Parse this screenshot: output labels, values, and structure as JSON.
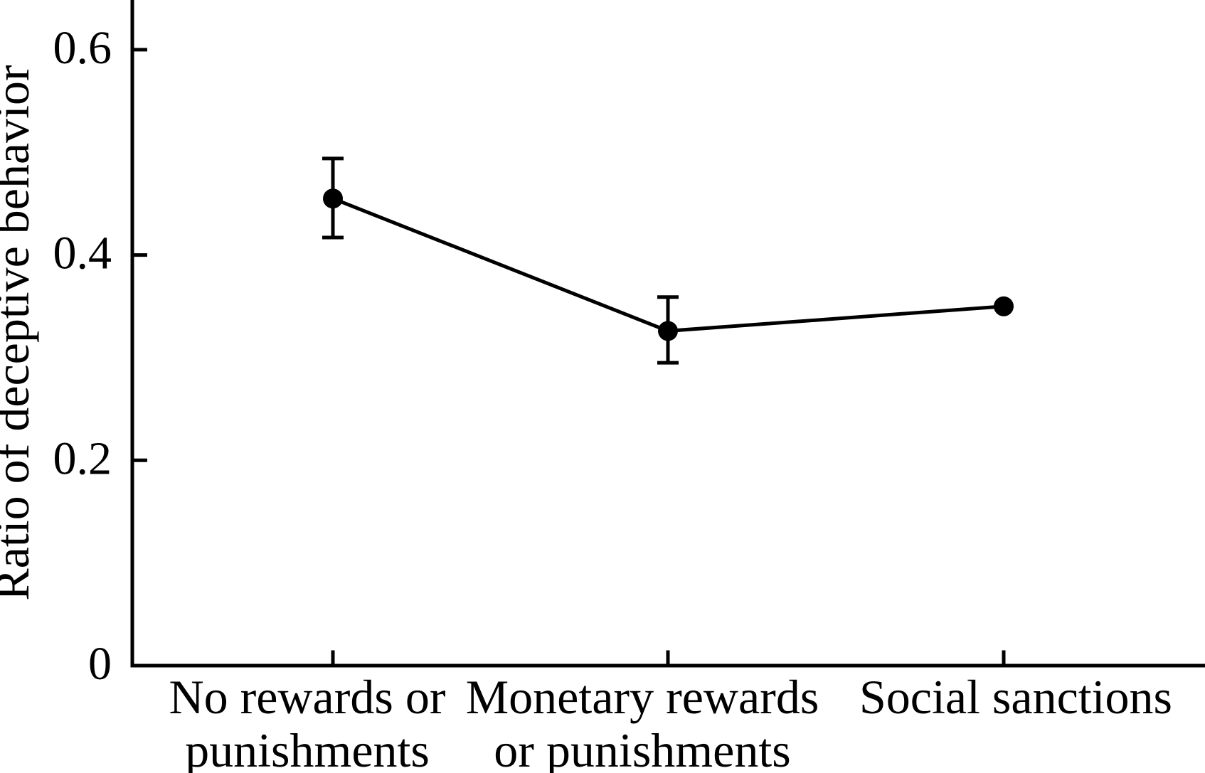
{
  "figure": {
    "background_color": "#ffffff",
    "ink_color": "#000000"
  },
  "chart_data": {
    "type": "line",
    "title": "",
    "xlabel": "",
    "ylabel": "Ratio of deceptive behavior",
    "categories": [
      "No rewards or punishments",
      "Monetary rewards or punishments",
      "Social sanctions"
    ],
    "category_label_lines": [
      [
        "No rewards or",
        "punishments"
      ],
      [
        "Monetary rewards",
        "or punishments"
      ],
      [
        "Social sanctions"
      ]
    ],
    "series": [
      {
        "name": "Ratio of deceptive behavior",
        "values": [
          0.455,
          0.326,
          0.35
        ],
        "error_plus": [
          0.039,
          0.033,
          0
        ],
        "error_minus": [
          0.038,
          0.031,
          0
        ]
      }
    ],
    "y_ticks": [
      0,
      0.2,
      0.4,
      0.6
    ],
    "y_tick_labels": [
      "0",
      "0.2",
      "0.4",
      "0.6"
    ],
    "ylim": [
      0,
      0.65
    ],
    "grid": false,
    "legend": false,
    "marker": "filled-circle",
    "line_color": "#000000",
    "marker_color": "#000000",
    "error_bar_color": "#000000"
  }
}
